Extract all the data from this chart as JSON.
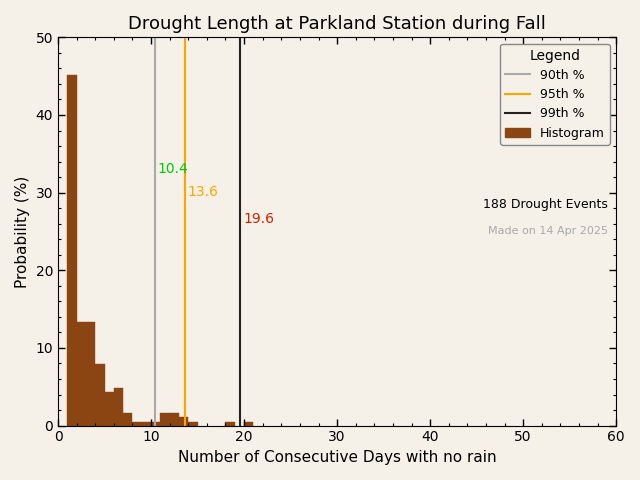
{
  "title": "Drought Length at Parkland Station during Fall",
  "xlabel": "Number of Consecutive Days with no rain",
  "ylabel": "Probability (%)",
  "xlim": [
    0,
    60
  ],
  "ylim": [
    0,
    50
  ],
  "xticks": [
    0,
    10,
    20,
    30,
    40,
    50,
    60
  ],
  "yticks": [
    0,
    10,
    20,
    30,
    40,
    50
  ],
  "bar_color": "#8B4513",
  "bar_edgecolor": "#8B4513",
  "percentile_90": 10.4,
  "percentile_95": 13.6,
  "percentile_99": 19.6,
  "color_90": "#aaaaaa",
  "color_95": "#FFA500",
  "color_99": "#222222",
  "label_color_90": "#00cc00",
  "label_color_95": "#FFA500",
  "label_color_99": "#cc2200",
  "n_events": 188,
  "made_on": "Made on 14 Apr 2025",
  "title_fontsize": 13,
  "axis_fontsize": 11,
  "legend_title": "Legend",
  "bg_color": "#f5f0e8",
  "bin_edges": [
    1,
    2,
    3,
    4,
    5,
    6,
    7,
    8,
    9,
    10,
    11,
    12,
    13,
    14,
    15,
    16,
    17,
    18,
    19,
    20,
    21,
    22,
    23,
    24,
    25,
    26,
    27,
    28,
    29,
    30,
    31,
    32,
    33,
    34,
    35,
    36,
    37,
    38,
    39,
    40,
    41,
    42,
    43,
    44,
    45,
    46,
    47,
    48,
    49,
    50,
    51,
    52,
    53,
    54,
    55,
    56,
    57,
    58,
    59,
    60
  ],
  "bar_heights": [
    45.2,
    13.3,
    13.3,
    7.9,
    4.3,
    4.8,
    1.6,
    0.5,
    0.5,
    0.5,
    1.6,
    1.6,
    1.1,
    0.5,
    0.0,
    0.0,
    0.0,
    0.5,
    0.0,
    0.5,
    0.0,
    0.0,
    0.0,
    0.0,
    0.0,
    0.0,
    0.0,
    0.0,
    0.0,
    0.0,
    0.0,
    0.0,
    0.0,
    0.0,
    0.0,
    0.0,
    0.0,
    0.0,
    0.0,
    0.0,
    0.0,
    0.0,
    0.0,
    0.0,
    0.0,
    0.0,
    0.0,
    0.0,
    0.0,
    0.0,
    0.0,
    0.0,
    0.0,
    0.0,
    0.0,
    0.0,
    0.0,
    0.0,
    0.0
  ]
}
